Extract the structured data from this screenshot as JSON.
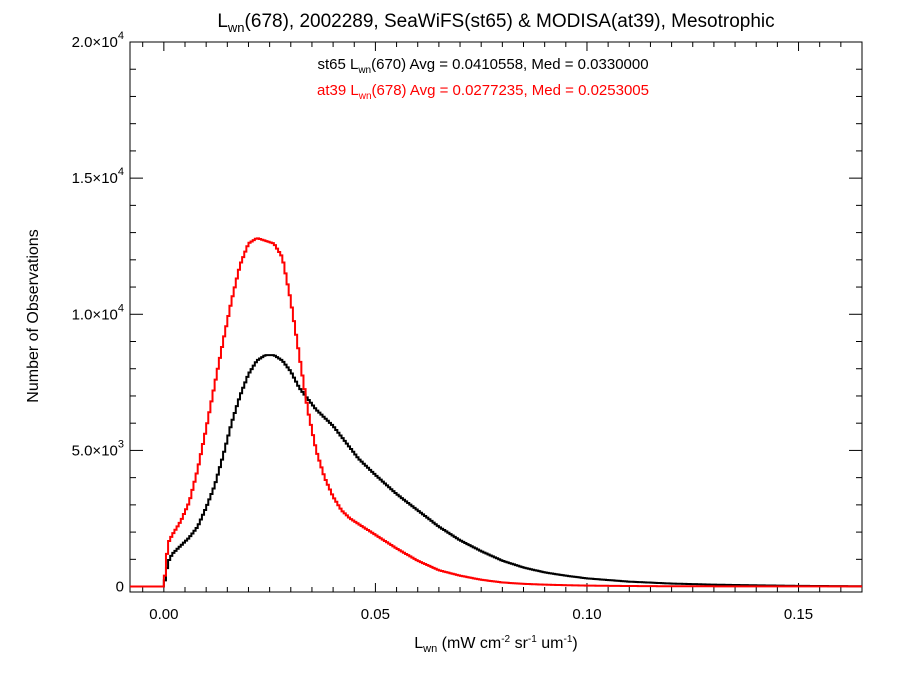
{
  "chart_data": {
    "type": "line",
    "title": {
      "main": "L",
      "main_sub": "wn",
      "rest": "(678), 2002289, SeaWiFS(st65) & MODISA(at39), Mesotrophic"
    },
    "xlabel": {
      "main": "L",
      "sub": "wn",
      "mid": " (mW cm",
      "sup1": "-2",
      "mid2": " sr",
      "sup2": "-1",
      "mid3": " um",
      "sup3": "-1",
      "end": ")"
    },
    "ylabel": "Number of Observations",
    "xlim": [
      -0.008,
      0.165
    ],
    "ylim": [
      -200,
      20000
    ],
    "x_ticks": [
      {
        "value": 0.0,
        "label": "0.00"
      },
      {
        "value": 0.05,
        "label": "0.05"
      },
      {
        "value": 0.1,
        "label": "0.10"
      },
      {
        "value": 0.15,
        "label": "0.15"
      }
    ],
    "y_ticks": [
      {
        "value": 0,
        "label": "0",
        "exp": ""
      },
      {
        "value": 5000,
        "label": "5.0×10",
        "exp": "3"
      },
      {
        "value": 10000,
        "label": "1.0×10",
        "exp": "4"
      },
      {
        "value": 15000,
        "label": "1.5×10",
        "exp": "4"
      },
      {
        "value": 20000,
        "label": "2.0×10",
        "exp": "4"
      }
    ],
    "grid": false,
    "annotations": [
      {
        "prefix": "st65 L",
        "sub": "wn",
        "rest": "(670) Avg = 0.0410558, Med = 0.0330000",
        "color": "#000000"
      },
      {
        "prefix": "at39 L",
        "sub": "wn",
        "rest": "(678) Avg = 0.0277235, Med = 0.0253005",
        "color": "#ff0000"
      }
    ],
    "series": [
      {
        "color": "#000000",
        "style": "step",
        "x": [
          0.0,
          0.001,
          0.002,
          0.004,
          0.006,
          0.008,
          0.01,
          0.012,
          0.014,
          0.016,
          0.018,
          0.02,
          0.022,
          0.024,
          0.026,
          0.028,
          0.03,
          0.032,
          0.034,
          0.036,
          0.038,
          0.04,
          0.042,
          0.044,
          0.046,
          0.048,
          0.05,
          0.055,
          0.06,
          0.065,
          0.07,
          0.075,
          0.08,
          0.085,
          0.09,
          0.095,
          0.1,
          0.11,
          0.12,
          0.13,
          0.14,
          0.15,
          0.16,
          0.165
        ],
        "y": [
          0,
          900,
          1200,
          1500,
          1800,
          2200,
          2900,
          3700,
          4800,
          6000,
          7000,
          7800,
          8300,
          8500,
          8500,
          8300,
          7900,
          7300,
          6900,
          6500,
          6200,
          5900,
          5500,
          5100,
          4700,
          4400,
          4100,
          3400,
          2800,
          2200,
          1700,
          1300,
          950,
          700,
          520,
          400,
          300,
          180,
          110,
          70,
          45,
          25,
          15,
          10
        ]
      },
      {
        "color": "#ff0000",
        "style": "step",
        "x": [
          0.0,
          0.001,
          0.002,
          0.004,
          0.006,
          0.008,
          0.01,
          0.012,
          0.014,
          0.016,
          0.018,
          0.02,
          0.022,
          0.024,
          0.026,
          0.028,
          0.03,
          0.032,
          0.034,
          0.036,
          0.038,
          0.04,
          0.042,
          0.044,
          0.046,
          0.048,
          0.05,
          0.055,
          0.06,
          0.065,
          0.07,
          0.075,
          0.08,
          0.085,
          0.09,
          0.095,
          0.1,
          0.11,
          0.12,
          0.165
        ],
        "y": [
          0,
          1600,
          1900,
          2400,
          3100,
          4300,
          5800,
          7400,
          9000,
          10500,
          11800,
          12600,
          12800,
          12700,
          12600,
          12100,
          10500,
          8500,
          6500,
          5000,
          4000,
          3300,
          2800,
          2500,
          2300,
          2100,
          1900,
          1400,
          950,
          600,
          400,
          250,
          150,
          100,
          70,
          50,
          35,
          20,
          10,
          5
        ]
      }
    ]
  }
}
